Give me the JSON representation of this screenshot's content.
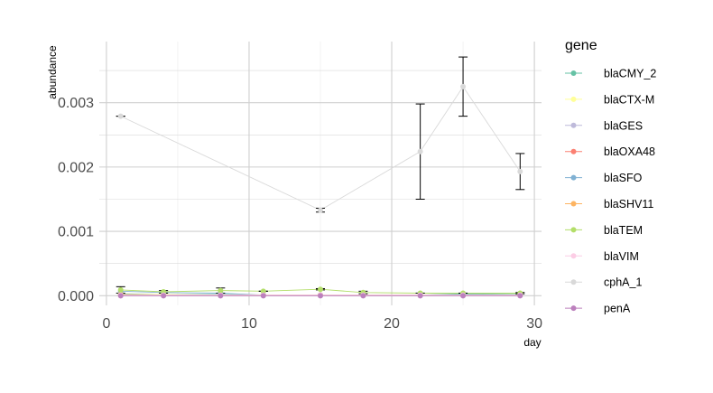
{
  "chart_data": {
    "type": "line",
    "title": "",
    "xlabel": "day",
    "ylabel": "abundance",
    "xlim": [
      -0.5,
      30.5
    ],
    "ylim": [
      -0.00015,
      0.00395
    ],
    "x_ticks": [
      0,
      10,
      20,
      30
    ],
    "x_tick_labels": [
      "0",
      "10",
      "20",
      "30"
    ],
    "y_ticks": [
      0,
      0.001,
      0.002,
      0.003
    ],
    "y_tick_labels": [
      "0.000",
      "0.001",
      "0.002",
      "0.003"
    ],
    "grid": true,
    "legend_title": "gene",
    "legend_position": "right",
    "series": [
      {
        "name": "blaCMY_2",
        "color": "#66c2a5",
        "x": [
          1,
          4,
          8,
          11,
          15,
          18,
          22,
          25,
          29
        ],
        "y": [
          3e-05,
          2e-05,
          2e-05,
          1e-05,
          1e-05,
          1e-05,
          1e-05,
          3e-05,
          2e-05
        ]
      },
      {
        "name": "blaCTX-M",
        "color": "#ffff99",
        "x": [
          1,
          4,
          8,
          11,
          15,
          18,
          22,
          25,
          29
        ],
        "y": [
          2e-05,
          2e-05,
          1e-05,
          1e-05,
          1e-05,
          1e-05,
          1e-05,
          1e-05,
          1e-05
        ]
      },
      {
        "name": "blaGES",
        "color": "#bebada",
        "x": [
          1,
          4,
          8,
          11,
          15,
          18,
          22,
          25,
          29
        ],
        "y": [
          1e-05,
          1e-05,
          1e-05,
          1e-05,
          1e-05,
          1e-05,
          1e-05,
          1e-05,
          1e-05
        ]
      },
      {
        "name": "blaOXA48",
        "color": "#fb8072",
        "x": [
          1,
          4,
          8,
          11,
          15,
          18,
          22,
          25,
          29
        ],
        "y": [
          1e-05,
          1e-05,
          1e-05,
          1e-05,
          1e-05,
          1e-05,
          1e-05,
          1e-05,
          1e-05
        ]
      },
      {
        "name": "blaSFO",
        "color": "#80b1d3",
        "x": [
          1,
          4,
          8,
          11,
          15,
          18,
          22,
          25,
          29
        ],
        "y": [
          7e-05,
          5e-05,
          4e-05,
          1e-05,
          1e-05,
          1e-05,
          1e-05,
          2e-05,
          1e-05
        ]
      },
      {
        "name": "blaSHV11",
        "color": "#fdb462",
        "x": [
          1,
          4,
          8,
          11,
          15,
          18,
          22,
          25,
          29
        ],
        "y": [
          2e-05,
          1e-05,
          1e-05,
          1e-05,
          1e-05,
          1e-05,
          1e-05,
          1e-05,
          1e-05
        ]
      },
      {
        "name": "blaTEM",
        "color": "#b3de69",
        "x": [
          1,
          4,
          8,
          11,
          15,
          18,
          22,
          25,
          29
        ],
        "y": [
          9e-05,
          6e-05,
          8e-05,
          7e-05,
          0.0001,
          5e-05,
          4e-05,
          4e-05,
          4e-05
        ],
        "err": [
          5e-05,
          2e-05,
          4e-05,
          0.0,
          1e-05,
          2e-05,
          0.0,
          0.0,
          1e-05
        ]
      },
      {
        "name": "blaVIM",
        "color": "#fccde5",
        "x": [
          1,
          4,
          8,
          11,
          15,
          18,
          22,
          25,
          29
        ],
        "y": [
          1e-05,
          1e-05,
          1e-05,
          1e-05,
          1e-05,
          1e-05,
          1e-05,
          1e-05,
          1e-05
        ]
      },
      {
        "name": "cphA_1",
        "color": "#d9d9d9",
        "x": [
          1,
          15,
          22,
          25,
          29
        ],
        "y": [
          0.00279,
          0.00133,
          0.00224,
          0.00325,
          0.00193
        ],
        "err": [
          0.0,
          3e-05,
          0.00074,
          0.00046,
          0.00028
        ]
      },
      {
        "name": "penA",
        "color": "#bc80bd",
        "x": [
          1,
          4,
          8,
          11,
          15,
          18,
          22,
          25,
          29
        ],
        "y": [
          0.0,
          0.0,
          0.0,
          0.0,
          0.0,
          0.0,
          0.0,
          0.0,
          0.0
        ]
      }
    ]
  }
}
